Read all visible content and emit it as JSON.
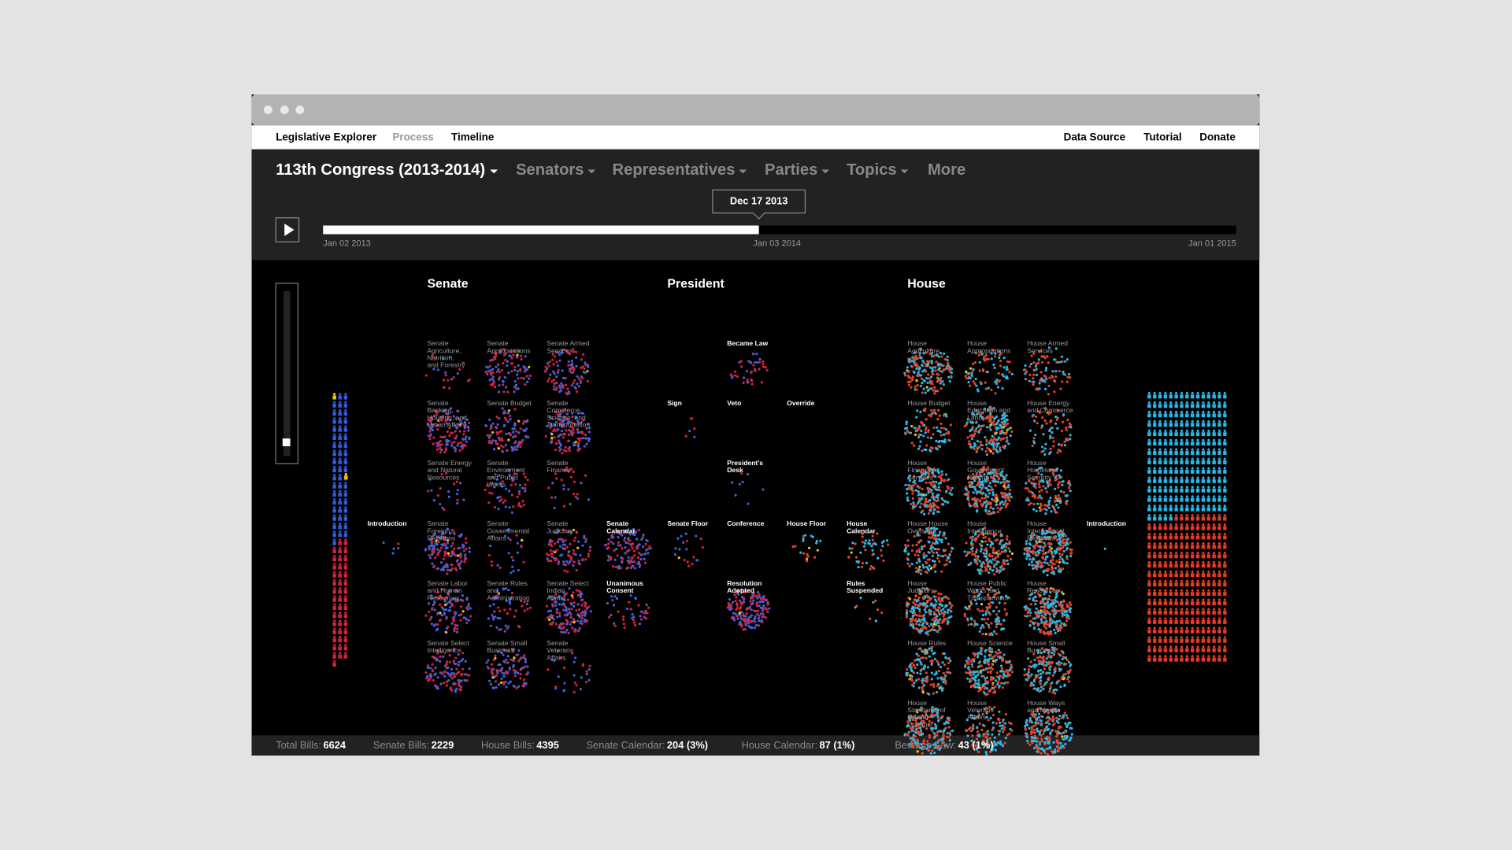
{
  "nav": {
    "brand": "Legislative Explorer",
    "links": [
      "Process",
      "Timeline"
    ],
    "right_links": [
      "Data Source",
      "Tutorial",
      "Donate"
    ]
  },
  "header": {
    "congress": "113th Congress (2013-2014)",
    "menus": [
      "Senators",
      "Representatives",
      "Parties",
      "Topics",
      "More"
    ]
  },
  "timeline": {
    "current": "Dec 17 2013",
    "start": "Jan 02 2013",
    "middle": "Jan 03 2014",
    "end": "Jan 01 2015"
  },
  "sections": [
    "Senate",
    "President",
    "House"
  ],
  "senate_committees": [
    [
      "Senate Agriculture, Nutrition, and Forestry",
      "Senate Appropriations",
      "Senate Armed Services"
    ],
    [
      "Senate Banking, Housing, and Urban Affairs",
      "Senate Budget",
      "Senate Commerce, Science, and Transportation"
    ],
    [
      "Senate Energy and Natural Resources",
      "Senate Environment and Public Works",
      "Senate Finance"
    ],
    [
      "Senate Foreign Relations",
      "Senate Governmental Affairs",
      "Senate Judiciary"
    ],
    [
      "Senate Labor and Human Resources",
      "Senate Rules and Administration",
      "Senate Select Indian Affairs"
    ],
    [
      "Senate Select Intelligence",
      "Senate Small Business",
      "Senate Veterans Affairs"
    ]
  ],
  "house_committees": [
    [
      "House Agriculture",
      "House Appropriations",
      "House Armed Services"
    ],
    [
      "House Budget",
      "House Education and Labor",
      "House Energy and Commerce"
    ],
    [
      "House Financial Services",
      "House Government Reform",
      "House Homeland Security"
    ],
    [
      "House House Oversight",
      "House Intelligence",
      "House International Relations"
    ],
    [
      "House Judiciary",
      "House Public Works and Transportation",
      "House Resources"
    ],
    [
      "House Rules",
      "House Science",
      "House Small Business"
    ],
    [
      "House Standards of Official Conduct",
      "House Veterans Affairs",
      "House Ways and Means"
    ]
  ],
  "stages": [
    "Introduction",
    "Senate Calendar",
    "Unanimous Consent",
    "Sign",
    "Veto",
    "Override",
    "Became Law",
    "President's Desk",
    "Senate Floor",
    "Conference",
    "House Floor",
    "House Calendar",
    "Resolution Adopted",
    "Rules Suspended",
    "Introduction"
  ],
  "footer": [
    {
      "label": "Total Bills:",
      "value": "6624"
    },
    {
      "label": "Senate Bills:",
      "value": "2229"
    },
    {
      "label": "House Bills:",
      "value": "4395"
    },
    {
      "label": "Senate Calendar:",
      "value": "204 (3%)"
    },
    {
      "label": "House Calendar:",
      "value": "87 (1%)"
    },
    {
      "label": "Became Law:",
      "value": "43 (1%)"
    }
  ]
}
